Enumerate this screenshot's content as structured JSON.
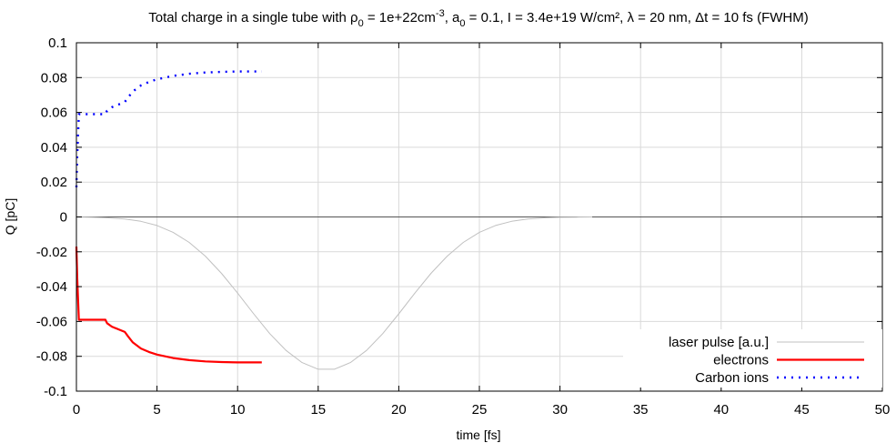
{
  "chart_data": {
    "type": "line",
    "title": {
      "prefix": "Total charge in a single tube with ρ",
      "rho_sub": "0",
      "rho_value": " = 1e+22cm",
      "rho_sup": "-3",
      "a_part": ", a",
      "a_sub": "0",
      "rest": " = 0.1, I = 3.4e+19 W/cm², λ = 20 nm, Δt = 10 fs (FWHM)"
    },
    "xlabel": "time [fs]",
    "ylabel": "Q [pC]",
    "xlim": [
      0,
      50
    ],
    "ylim": [
      -0.1,
      0.1
    ],
    "x_ticks": [
      0,
      5,
      10,
      15,
      20,
      25,
      30,
      35,
      40,
      45,
      50
    ],
    "x_tick_labels": [
      "0",
      "5",
      "10",
      "15",
      "20",
      "25",
      "30",
      "35",
      "40",
      "45",
      "50"
    ],
    "y_ticks": [
      0.1,
      0.08,
      0.06,
      0.04,
      0.02,
      0,
      -0.02,
      -0.04,
      -0.06,
      -0.08,
      -0.1
    ],
    "y_tick_labels": [
      "0.1",
      "0.08",
      "0.06",
      "0.04",
      "0.02",
      "0",
      "-0.02",
      "-0.04",
      "-0.06",
      "-0.08",
      "-0.1"
    ],
    "grid": true,
    "zero_line": true,
    "legend_position": "bottom-right",
    "series": [
      {
        "name": "laser pulse [a.u.]",
        "color": "#c0c0c0",
        "style": "solid-thin",
        "x": [
          0,
          1,
          2,
          3,
          4,
          5,
          6,
          7,
          8,
          9,
          10,
          11,
          12,
          13,
          14,
          15,
          16,
          17,
          18,
          19,
          20,
          21,
          22,
          23,
          24,
          25,
          26,
          27,
          28,
          29,
          30,
          31,
          32
        ],
        "y": [
          0,
          -0.0002,
          -0.0005,
          -0.0012,
          -0.0025,
          -0.0049,
          -0.0088,
          -0.0146,
          -0.0225,
          -0.0324,
          -0.0437,
          -0.0556,
          -0.067,
          -0.0766,
          -0.0836,
          -0.0874,
          -0.0874,
          -0.0836,
          -0.0766,
          -0.067,
          -0.0556,
          -0.0437,
          -0.0324,
          -0.0225,
          -0.0146,
          -0.0088,
          -0.0049,
          -0.0025,
          -0.0012,
          -0.0005,
          -0.0002,
          -0.0001,
          0
        ]
      },
      {
        "name": "electrons",
        "color": "#ff0000",
        "style": "solid-thick",
        "x": [
          0,
          0.05,
          0.15,
          0.3,
          1.0,
          1.8,
          1.9,
          2.2,
          2.6,
          3.0,
          3.2,
          3.5,
          4.0,
          4.5,
          5.0,
          6.0,
          7.0,
          8.0,
          9.0,
          10.0,
          10.5,
          11.0,
          11.5
        ],
        "y": [
          -0.017,
          -0.035,
          -0.059,
          -0.059,
          -0.059,
          -0.059,
          -0.061,
          -0.063,
          -0.0645,
          -0.066,
          -0.0685,
          -0.072,
          -0.0755,
          -0.0775,
          -0.079,
          -0.081,
          -0.0822,
          -0.0829,
          -0.0833,
          -0.0835,
          -0.0835,
          -0.0835,
          -0.0835
        ]
      },
      {
        "name": "Carbon ions",
        "color": "#0000ff",
        "style": "dotted",
        "x": [
          0,
          0.05,
          0.15,
          0.3,
          1.0,
          1.8,
          1.9,
          2.2,
          2.6,
          3.0,
          3.2,
          3.5,
          4.0,
          4.5,
          5.0,
          6.0,
          7.0,
          8.0,
          9.0,
          10.0,
          10.5,
          11.0,
          11.5
        ],
        "y": [
          0.017,
          0.035,
          0.059,
          0.059,
          0.059,
          0.059,
          0.061,
          0.063,
          0.0645,
          0.066,
          0.0685,
          0.072,
          0.0755,
          0.0775,
          0.079,
          0.081,
          0.0822,
          0.0829,
          0.0833,
          0.0835,
          0.0835,
          0.0835,
          0.0835
        ]
      }
    ]
  }
}
